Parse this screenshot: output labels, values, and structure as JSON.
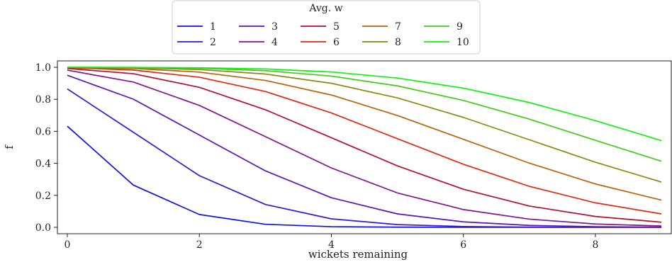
{
  "chart_data": {
    "type": "line",
    "title": "",
    "xlabel": "wickets remaining",
    "ylabel": "f",
    "xlim": [
      -0.15,
      9.15
    ],
    "ylim": [
      -0.04,
      1.04
    ],
    "xticks": [
      0,
      2,
      4,
      6,
      8
    ],
    "yticks": [
      0.0,
      0.2,
      0.4,
      0.6,
      0.8,
      1.0
    ],
    "grid": false,
    "legend": {
      "title": "Avg. w",
      "placement": "top-center",
      "columns": 5
    },
    "x": [
      0,
      1,
      2,
      3,
      4,
      5,
      6,
      7,
      8,
      9
    ],
    "series": [
      {
        "name": "1",
        "color": "#1010e0",
        "values": [
          0.632,
          0.264,
          0.08,
          0.019,
          0.004,
          0.001,
          0.0,
          0.0,
          0.0,
          0.0
        ]
      },
      {
        "name": "2",
        "color": "#3a16d2",
        "values": [
          0.865,
          0.594,
          0.323,
          0.143,
          0.053,
          0.017,
          0.005,
          0.001,
          0.0,
          0.0
        ]
      },
      {
        "name": "3",
        "color": "#5c14b4",
        "values": [
          0.95,
          0.801,
          0.577,
          0.353,
          0.185,
          0.084,
          0.034,
          0.012,
          0.004,
          0.001
        ]
      },
      {
        "name": "4",
        "color": "#80148c",
        "values": [
          0.982,
          0.908,
          0.762,
          0.567,
          0.371,
          0.215,
          0.111,
          0.051,
          0.021,
          0.008
        ]
      },
      {
        "name": "5",
        "color": "#b0102a",
        "values": [
          0.993,
          0.96,
          0.875,
          0.735,
          0.56,
          0.384,
          0.238,
          0.133,
          0.068,
          0.032
        ]
      },
      {
        "name": "6",
        "color": "#dc2a14",
        "values": [
          0.998,
          0.983,
          0.938,
          0.849,
          0.715,
          0.554,
          0.394,
          0.256,
          0.153,
          0.084
        ]
      },
      {
        "name": "7",
        "color": "#b8620a",
        "values": [
          0.999,
          0.993,
          0.97,
          0.918,
          0.827,
          0.699,
          0.55,
          0.401,
          0.271,
          0.17
        ]
      },
      {
        "name": "8",
        "color": "#8a8a10",
        "values": [
          1.0,
          0.997,
          0.986,
          0.958,
          0.9,
          0.809,
          0.687,
          0.547,
          0.407,
          0.283
        ]
      },
      {
        "name": "9",
        "color": "#46c818",
        "values": [
          1.0,
          0.999,
          0.994,
          0.979,
          0.945,
          0.884,
          0.793,
          0.676,
          0.544,
          0.413
        ]
      },
      {
        "name": "10",
        "color": "#12f012",
        "values": [
          1.0,
          0.999,
          0.997,
          0.99,
          0.971,
          0.933,
          0.87,
          0.78,
          0.667,
          0.542
        ]
      }
    ]
  }
}
